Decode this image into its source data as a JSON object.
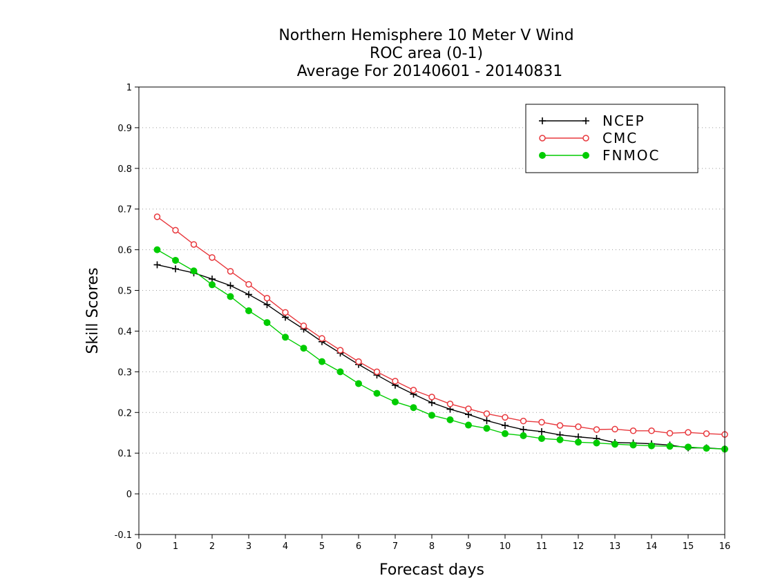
{
  "chart_data": {
    "type": "line",
    "title": [
      "Northern Hemisphere 10 Meter V Wind",
      "ROC area (0-1)",
      "Average For 20140601 - 20140831"
    ],
    "xlabel": "Forecast days",
    "ylabel": "Skill Scores",
    "xlim": [
      0,
      16
    ],
    "ylim": [
      -0.1,
      1
    ],
    "xticks": [
      "0",
      "1",
      "2",
      "3",
      "4",
      "5",
      "6",
      "7",
      "8",
      "9",
      "10",
      "11",
      "12",
      "13",
      "14",
      "15",
      "16"
    ],
    "yticks": [
      "-0.1",
      "0",
      "0.1",
      "0.2",
      "0.3",
      "0.4",
      "0.5",
      "0.6",
      "0.7",
      "0.8",
      "0.9",
      "1"
    ],
    "grid": true,
    "legend_position": "top-right",
    "x": [
      0.5,
      1,
      1.5,
      2,
      2.5,
      3,
      3.5,
      4,
      4.5,
      5,
      5.5,
      6,
      6.5,
      7,
      7.5,
      8,
      8.5,
      9,
      9.5,
      10,
      10.5,
      11,
      11.5,
      12,
      12.5,
      13,
      13.5,
      14,
      14.5,
      15,
      15.5,
      16
    ],
    "series": [
      {
        "name": "NCEP",
        "color": "#000000",
        "marker": "plus",
        "values": [
          0.563,
          0.553,
          0.543,
          0.528,
          0.512,
          0.49,
          0.465,
          0.434,
          0.405,
          0.374,
          0.346,
          0.318,
          0.292,
          0.267,
          0.245,
          0.224,
          0.208,
          0.195,
          0.18,
          0.168,
          0.158,
          0.153,
          0.145,
          0.14,
          0.136,
          0.126,
          0.125,
          0.123,
          0.12,
          0.113,
          0.113,
          0.11
        ]
      },
      {
        "name": "CMC",
        "color": "#e8383d",
        "marker": "open-circle",
        "values": [
          0.681,
          0.648,
          0.613,
          0.581,
          0.547,
          0.515,
          0.481,
          0.446,
          0.413,
          0.382,
          0.353,
          0.325,
          0.3,
          0.277,
          0.255,
          0.238,
          0.221,
          0.209,
          0.197,
          0.188,
          0.179,
          0.176,
          0.168,
          0.165,
          0.158,
          0.159,
          0.155,
          0.155,
          0.149,
          0.151,
          0.148,
          0.146
        ]
      },
      {
        "name": "FNMOC",
        "color": "#00cc00",
        "marker": "filled-circle",
        "values": [
          0.6,
          0.574,
          0.548,
          0.514,
          0.485,
          0.45,
          0.421,
          0.385,
          0.358,
          0.325,
          0.3,
          0.271,
          0.247,
          0.226,
          0.212,
          0.193,
          0.182,
          0.169,
          0.161,
          0.148,
          0.143,
          0.136,
          0.133,
          0.127,
          0.125,
          0.122,
          0.12,
          0.118,
          0.117,
          0.115,
          0.112,
          0.11
        ]
      }
    ]
  }
}
